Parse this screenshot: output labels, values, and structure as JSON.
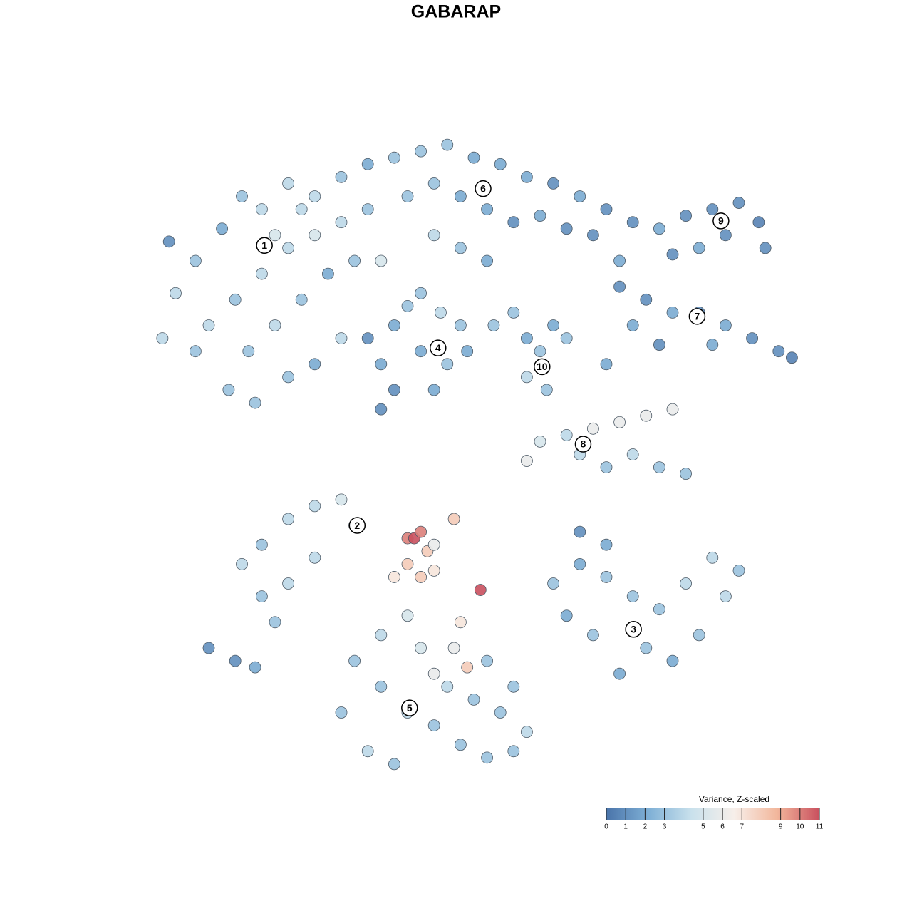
{
  "chart_data": {
    "type": "scatter",
    "title": "GABARAP",
    "x": [
      5,
      8,
      12,
      15,
      18,
      22,
      26,
      30,
      34,
      10,
      14,
      18,
      22,
      26,
      30,
      34,
      16,
      20,
      24,
      28,
      32,
      13,
      17,
      22,
      26,
      30,
      4,
      3,
      8,
      36,
      20,
      24,
      38,
      42,
      46,
      50,
      54,
      58,
      62,
      66,
      70,
      74,
      40,
      44,
      48,
      52,
      56,
      60,
      64,
      68,
      72,
      44,
      48,
      52,
      78,
      82,
      86,
      90,
      93,
      94,
      88,
      84,
      80,
      72,
      76,
      80,
      84,
      88,
      92,
      96,
      98,
      86,
      74,
      78,
      70,
      34,
      36,
      38,
      40,
      42,
      44,
      46,
      48,
      49,
      38,
      42,
      45,
      36,
      53,
      56,
      58,
      60,
      62,
      64,
      58,
      61,
      60,
      64,
      68,
      72,
      76,
      80,
      74,
      78,
      82,
      70,
      66,
      58,
      15,
      18,
      22,
      26,
      30,
      32,
      18,
      22,
      26,
      20,
      10,
      14,
      17,
      40,
      41,
      42,
      43,
      40,
      42,
      44,
      38,
      51,
      47,
      44,
      48,
      49,
      62,
      66,
      70,
      74,
      78,
      82,
      86,
      88,
      84,
      80,
      76,
      72,
      68,
      64,
      90,
      70,
      66,
      32,
      36,
      40,
      44,
      48,
      52,
      56,
      58,
      34,
      38,
      42,
      46,
      50,
      54,
      36,
      44,
      40,
      30,
      47,
      52,
      56
    ],
    "y": [
      75,
      80,
      85,
      90,
      88,
      92,
      90,
      93,
      95,
      70,
      74,
      78,
      82,
      84,
      86,
      88,
      66,
      70,
      74,
      78,
      80,
      60,
      58,
      62,
      64,
      68,
      83,
      68,
      66,
      80,
      84,
      88,
      96,
      97,
      98,
      96,
      95,
      93,
      92,
      90,
      88,
      86,
      90,
      92,
      90,
      88,
      86,
      87,
      85,
      84,
      80,
      84,
      82,
      80,
      85,
      87,
      88,
      89,
      86,
      82,
      84,
      82,
      81,
      76,
      74,
      72,
      72,
      70,
      68,
      66,
      65,
      67,
      70,
      67,
      64,
      68,
      64,
      70,
      73,
      66,
      60,
      64,
      70,
      66,
      60,
      75,
      72,
      57,
      70,
      72,
      68,
      66,
      70,
      68,
      62,
      60,
      52,
      53,
      54,
      55,
      56,
      57,
      50,
      48,
      47,
      48,
      50,
      49,
      33,
      36,
      40,
      42,
      43,
      39,
      28,
      30,
      34,
      24,
      20,
      18,
      17,
      37,
      37,
      38,
      35,
      33,
      31,
      32,
      31,
      29,
      40,
      36,
      24,
      17,
      30,
      33,
      31,
      28,
      26,
      30,
      34,
      28,
      22,
      18,
      20,
      16,
      22,
      25,
      32,
      36,
      38,
      18,
      14,
      10,
      8,
      5,
      3,
      4,
      7,
      4,
      2,
      20,
      14,
      12,
      10,
      22,
      16,
      25,
      10,
      20,
      18,
      14
    ],
    "values": [
      4,
      3,
      2,
      3,
      4,
      4,
      4,
      3,
      2,
      4,
      3,
      4,
      4,
      5,
      4,
      3,
      3,
      4,
      3,
      2,
      3,
      3,
      3,
      3,
      2,
      4,
      1,
      4,
      3,
      5,
      5,
      4,
      3,
      3,
      3,
      2,
      2,
      2,
      1,
      2,
      1,
      1,
      3,
      3,
      2,
      2,
      1,
      2,
      1,
      1,
      2,
      4,
      3,
      2,
      2,
      1,
      1,
      1,
      0.5,
      1,
      1,
      2,
      1,
      1,
      1,
      2,
      1,
      2,
      1,
      1,
      0.5,
      2,
      2,
      1,
      2,
      1,
      2,
      2,
      3,
      2,
      2,
      3,
      3,
      2,
      1,
      3,
      4,
      1,
      3,
      3,
      2,
      3,
      2,
      3,
      4,
      3,
      5,
      4,
      6,
      6,
      6,
      6,
      4,
      3,
      3,
      3,
      4,
      6,
      4,
      3,
      4,
      4,
      5,
      4,
      3,
      4,
      4,
      3,
      1,
      1,
      2,
      10,
      11,
      10,
      8,
      8,
      8,
      7,
      7,
      11,
      8,
      6,
      7,
      8,
      3,
      2,
      3,
      3,
      3,
      4,
      4,
      4,
      3,
      2,
      3,
      2,
      3,
      2,
      3,
      2,
      1,
      3,
      3,
      4,
      3,
      3,
      3,
      3,
      4,
      4,
      3,
      5,
      4,
      3,
      3,
      4,
      6,
      5,
      3,
      6,
      3,
      3
    ],
    "xlim": [
      0,
      100
    ],
    "ylim": [
      0,
      100
    ],
    "clusters": [
      {
        "label": "1",
        "x": 18.4,
        "y": 82.4
      },
      {
        "label": "2",
        "x": 32.4,
        "y": 39.0
      },
      {
        "label": "3",
        "x": 74.1,
        "y": 22.9
      },
      {
        "label": "4",
        "x": 44.6,
        "y": 66.5
      },
      {
        "label": "5",
        "x": 40.3,
        "y": 10.7
      },
      {
        "label": "6",
        "x": 51.4,
        "y": 91.2
      },
      {
        "label": "7",
        "x": 83.7,
        "y": 71.4
      },
      {
        "label": "8",
        "x": 66.5,
        "y": 51.6
      },
      {
        "label": "9",
        "x": 87.3,
        "y": 86.2
      },
      {
        "label": "10",
        "x": 60.3,
        "y": 63.6
      }
    ],
    "colorbar": {
      "title": "Variance, Z-scaled",
      "clim": [
        0,
        11
      ],
      "ticks": [
        0,
        1,
        2,
        3,
        5,
        6,
        7,
        9,
        10,
        11
      ],
      "colors": [
        "#4a74aa",
        "#7fb0d6",
        "#c9e1ec",
        "#f7efea",
        "#f2b79c",
        "#c9505e"
      ]
    }
  }
}
